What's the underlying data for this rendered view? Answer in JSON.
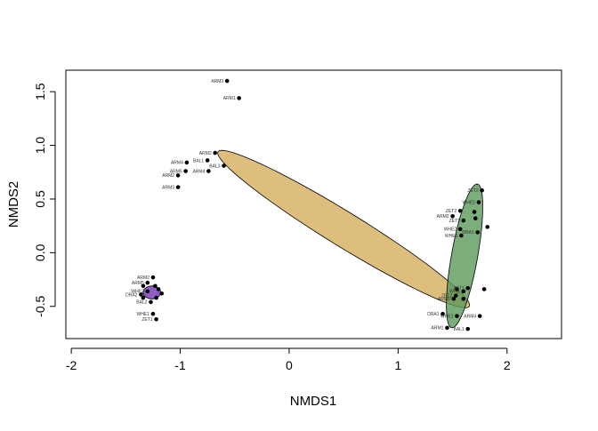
{
  "chart_data": {
    "type": "scatter",
    "title": "",
    "xlabel": "NMDS1",
    "ylabel": "NMDS2",
    "xlim": [
      -2.05,
      2.5
    ],
    "ylim": [
      -0.8,
      1.7
    ],
    "x_ticks": [
      -2,
      -1,
      0,
      1,
      2
    ],
    "y_ticks": [
      -0.5,
      0.0,
      0.5,
      1.0,
      1.5
    ],
    "x_tick_labels": [
      "-2",
      "-1",
      "0",
      "1",
      "2"
    ],
    "y_tick_labels": [
      "-0.5",
      "0.0",
      "0.5",
      "1.0",
      "1.5"
    ],
    "grid": false,
    "point_color": "#000000",
    "ellipses": [
      {
        "color": "#d4ae5d",
        "opacity": 0.8,
        "cx": 0.5,
        "cy": 0.22,
        "rx": 1.36,
        "ry": 0.16,
        "angle_deg": -32
      },
      {
        "color": "#5a9a5a",
        "opacity": 0.8,
        "cx": 1.61,
        "cy": -0.03,
        "rx": 0.68,
        "ry": 0.12,
        "angle_deg": 80
      },
      {
        "color": "#7b42b8",
        "opacity": 0.85,
        "cx": -1.26,
        "cy": -0.37,
        "rx": 0.08,
        "ry": 0.06,
        "angle_deg": 0
      }
    ],
    "points": [
      {
        "x": -0.57,
        "y": 1.6,
        "label": "ARM3"
      },
      {
        "x": -0.46,
        "y": 1.44,
        "label": "ARM1"
      },
      {
        "x": -0.68,
        "y": 0.93,
        "label": "ARM2"
      },
      {
        "x": -0.75,
        "y": 0.86,
        "label": "BAL1"
      },
      {
        "x": -0.6,
        "y": 0.81,
        "label": "BAL3"
      },
      {
        "x": -0.94,
        "y": 0.84,
        "label": "ARM4"
      },
      {
        "x": -0.74,
        "y": 0.76,
        "label": "ARM4"
      },
      {
        "x": -0.95,
        "y": 0.76,
        "label": "ARM5"
      },
      {
        "x": -1.02,
        "y": 0.72,
        "label": "ARM2"
      },
      {
        "x": -1.02,
        "y": 0.61,
        "label": "ARM3"
      },
      {
        "x": 1.77,
        "y": 0.58,
        "label": "ZET2"
      },
      {
        "x": 1.74,
        "y": 0.47,
        "label": "WHE2"
      },
      {
        "x": 1.57,
        "y": 0.39,
        "label": "ZET2"
      },
      {
        "x": 1.7,
        "y": 0.38,
        "label": ""
      },
      {
        "x": 1.5,
        "y": 0.34,
        "label": "ARM2"
      },
      {
        "x": 1.71,
        "y": 0.32,
        "label": ""
      },
      {
        "x": 1.6,
        "y": 0.3,
        "label": "ZET1"
      },
      {
        "x": 1.82,
        "y": 0.24,
        "label": ""
      },
      {
        "x": 1.57,
        "y": 0.22,
        "label": "WHE2"
      },
      {
        "x": 1.73,
        "y": 0.19,
        "label": "DRA1"
      },
      {
        "x": 1.58,
        "y": 0.16,
        "label": "WHE1"
      },
      {
        "x": 1.64,
        "y": -0.33,
        "label": "ZET1"
      },
      {
        "x": 1.54,
        "y": -0.34,
        "label": ""
      },
      {
        "x": 1.79,
        "y": -0.34,
        "label": ""
      },
      {
        "x": 1.6,
        "y": -0.36,
        "label": "WHE"
      },
      {
        "x": 1.53,
        "y": -0.4,
        "label": "ZET2"
      },
      {
        "x": 1.51,
        "y": -0.43,
        "label": "ARM5"
      },
      {
        "x": 1.6,
        "y": -0.43,
        "label": ""
      },
      {
        "x": 1.54,
        "y": -0.59,
        "label": "WHE2"
      },
      {
        "x": 1.75,
        "y": -0.59,
        "label": "ARM4"
      },
      {
        "x": 1.41,
        "y": -0.57,
        "label": "DRA1"
      },
      {
        "x": 1.45,
        "y": -0.7,
        "label": "ARM1"
      },
      {
        "x": 1.64,
        "y": -0.71,
        "label": "BAL1"
      },
      {
        "x": -1.25,
        "y": -0.23,
        "label": "ARM2"
      },
      {
        "x": -1.3,
        "y": -0.28,
        "label": "ARM5"
      },
      {
        "x": -1.23,
        "y": -0.31,
        "label": ""
      },
      {
        "x": -1.34,
        "y": -0.31,
        "label": ""
      },
      {
        "x": -1.2,
        "y": -0.34,
        "label": ""
      },
      {
        "x": -1.3,
        "y": -0.36,
        "label": "WHE2"
      },
      {
        "x": -1.36,
        "y": -0.39,
        "label": "DRA2"
      },
      {
        "x": -1.17,
        "y": -0.38,
        "label": ""
      },
      {
        "x": -1.22,
        "y": -0.42,
        "label": ""
      },
      {
        "x": -1.34,
        "y": -0.42,
        "label": ""
      },
      {
        "x": -1.27,
        "y": -0.46,
        "label": "BAL2"
      },
      {
        "x": -1.25,
        "y": -0.57,
        "label": "WHE1"
      },
      {
        "x": -1.22,
        "y": -0.62,
        "label": "ZET1"
      }
    ]
  }
}
